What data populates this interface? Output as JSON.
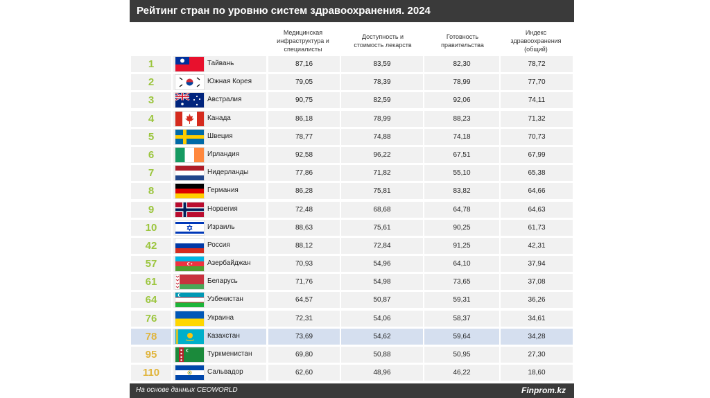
{
  "title": "Рейтинг стран по уровню систем здравоохранения. 2024",
  "columns": [
    {
      "l1": "Медицинская",
      "l2": "инфраструктура и",
      "l3": "специалисты"
    },
    {
      "l1": "Доступность и",
      "l2": "стоимость лекарств",
      "l3": ""
    },
    {
      "l1": "Готовность",
      "l2": "правительства",
      "l3": ""
    },
    {
      "l1": "Индекс",
      "l2": "здравоохранения",
      "l3": "(общий)"
    }
  ],
  "footer": {
    "source": "На основе данных CEOWORLD",
    "brand": "Finprom.kz"
  },
  "colors": {
    "header_bg": "#3a3a3a",
    "rank_green": "#9bc53d",
    "rank_yellow": "#e0b43a",
    "highlight": "#d5dfef"
  },
  "chart_data": {
    "type": "table",
    "title": "Рейтинг стран по уровню систем здравоохранения. 2024",
    "highlighted_row": "Казахстан",
    "rows": [
      {
        "rank": "1",
        "country": "Тайвань",
        "flag": "taiwan-flag",
        "v": [
          "87,16",
          "83,59",
          "82,30",
          "78,72"
        ]
      },
      {
        "rank": "2",
        "country": "Южная Корея",
        "flag": "south-korea-flag",
        "v": [
          "79,05",
          "78,39",
          "78,99",
          "77,70"
        ]
      },
      {
        "rank": "3",
        "country": "Австралия",
        "flag": "australia-flag",
        "v": [
          "90,75",
          "82,59",
          "92,06",
          "74,11"
        ]
      },
      {
        "rank": "4",
        "country": "Канада",
        "flag": "canada-flag",
        "v": [
          "86,18",
          "78,99",
          "88,23",
          "71,32"
        ]
      },
      {
        "rank": "5",
        "country": "Швеция",
        "flag": "sweden-flag",
        "v": [
          "78,77",
          "74,88",
          "74,18",
          "70,73"
        ]
      },
      {
        "rank": "6",
        "country": "Ирландия",
        "flag": "ireland-flag",
        "v": [
          "92,58",
          "96,22",
          "67,51",
          "67,99"
        ]
      },
      {
        "rank": "7",
        "country": "Нидерланды",
        "flag": "netherlands-flag",
        "v": [
          "77,86",
          "71,82",
          "55,10",
          "65,38"
        ]
      },
      {
        "rank": "8",
        "country": "Германия",
        "flag": "germany-flag",
        "v": [
          "86,28",
          "75,81",
          "83,82",
          "64,66"
        ]
      },
      {
        "rank": "9",
        "country": "Норвегия",
        "flag": "norway-flag",
        "v": [
          "72,48",
          "68,68",
          "64,78",
          "64,63"
        ]
      },
      {
        "rank": "10",
        "country": "Израиль",
        "flag": "israel-flag",
        "v": [
          "88,63",
          "75,61",
          "90,25",
          "61,73"
        ]
      },
      {
        "rank": "42",
        "country": "Россия",
        "flag": "russia-flag",
        "v": [
          "88,12",
          "72,84",
          "91,25",
          "42,31"
        ]
      },
      {
        "rank": "57",
        "country": "Азербайджан",
        "flag": "azerbaijan-flag",
        "v": [
          "70,93",
          "54,96",
          "64,10",
          "37,94"
        ]
      },
      {
        "rank": "61",
        "country": "Беларусь",
        "flag": "belarus-flag",
        "v": [
          "71,76",
          "54,98",
          "73,65",
          "37,08"
        ]
      },
      {
        "rank": "64",
        "country": "Узбекистан",
        "flag": "uzbekistan-flag",
        "v": [
          "64,57",
          "50,87",
          "59,31",
          "36,26"
        ]
      },
      {
        "rank": "76",
        "country": "Украина",
        "flag": "ukraine-flag",
        "v": [
          "72,31",
          "54,06",
          "58,37",
          "34,61"
        ]
      },
      {
        "rank": "78",
        "country": "Казахстан",
        "flag": "kazakhstan-flag",
        "v": [
          "73,69",
          "54,62",
          "59,64",
          "34,28"
        ]
      },
      {
        "rank": "95",
        "country": "Туркменистан",
        "flag": "turkmenistan-flag",
        "v": [
          "69,80",
          "50,88",
          "50,95",
          "27,30"
        ]
      },
      {
        "rank": "110",
        "country": "Сальвадор",
        "flag": "el-salvador-flag",
        "v": [
          "62,60",
          "48,96",
          "46,22",
          "18,60"
        ]
      }
    ]
  }
}
